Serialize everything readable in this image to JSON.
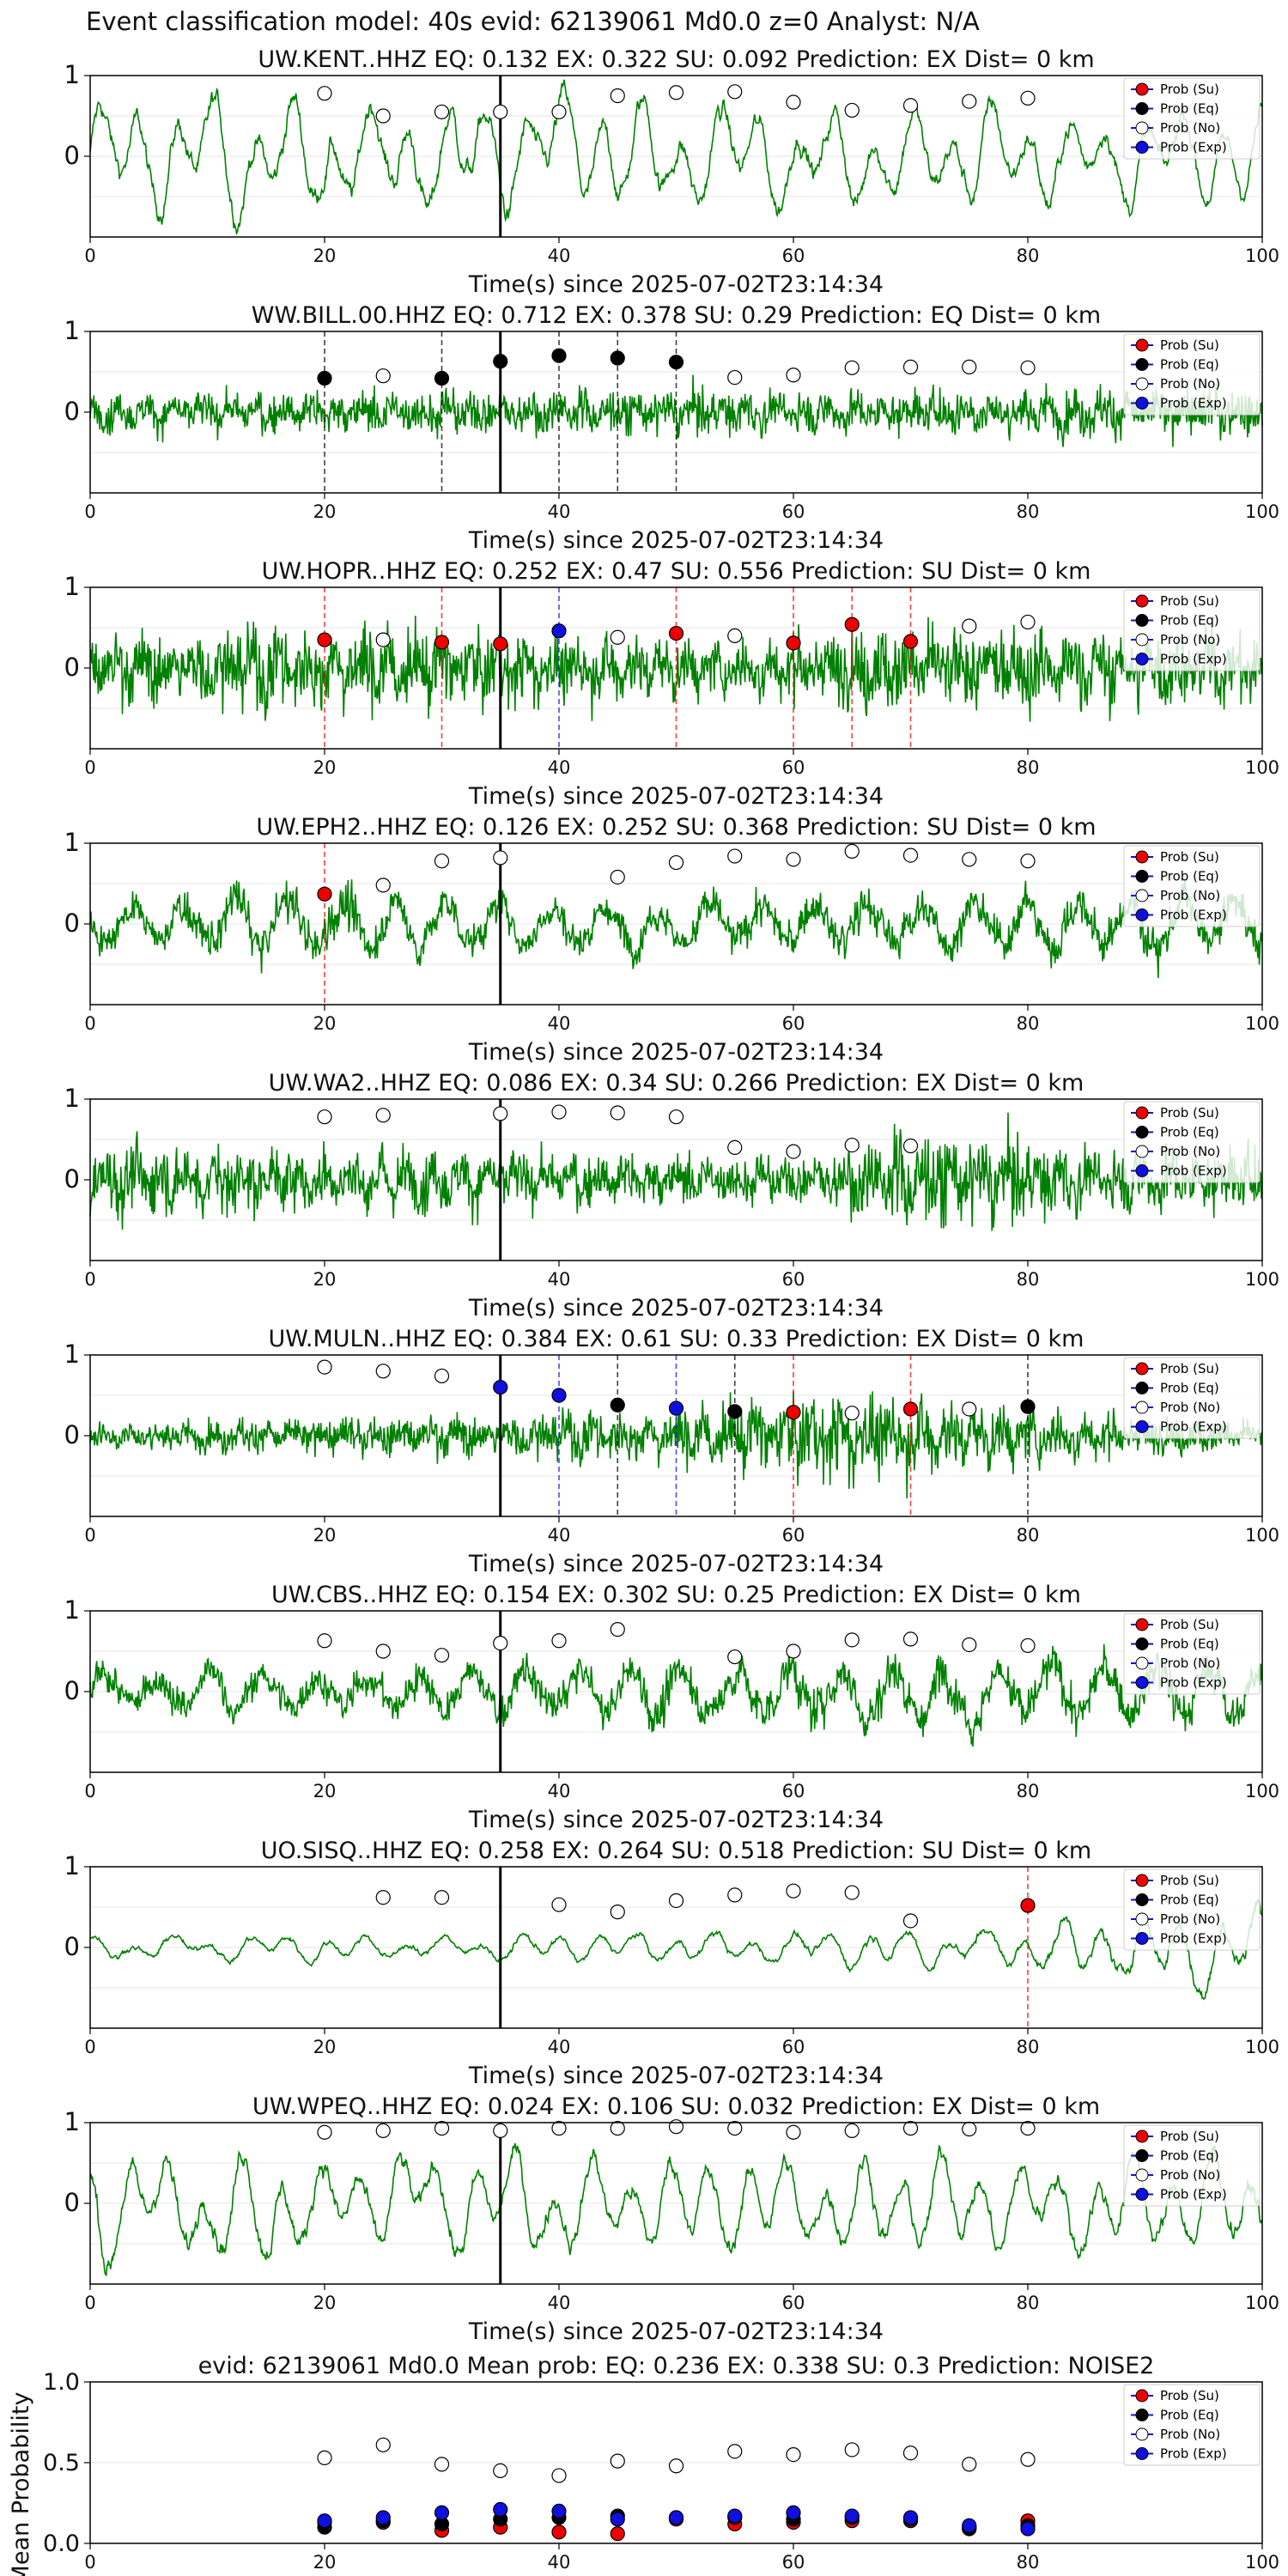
{
  "figure_title": "Event classification model: 40s evid: 62139061 Md0.0 z=0 Analyst: N/A",
  "legend_labels": [
    "Prob (Su)",
    "Prob (Eq)",
    "Prob (No)",
    "Prob (Exp)"
  ],
  "colors": {
    "su": "#ee0000",
    "eq": "#000000",
    "no": "#ffffff",
    "exp": "#1010dd",
    "trace": "#008000",
    "legend_bg": "#d5ead5"
  },
  "chart_data": [
    {
      "type": "line",
      "title": "UW.KENT..HHZ   EQ: 0.132  EX: 0.322  SU: 0.092   Prediction: EX    Dist= 0 km",
      "xlabel": "Time(s) since 2025-07-02T23:14:34",
      "xlim": [
        0,
        100
      ],
      "ylim": [
        -1,
        1
      ],
      "xticks": [
        "0",
        "20",
        "40",
        "60",
        "80",
        "100"
      ],
      "yticks": [
        "1",
        "0"
      ],
      "event_line_x": 35,
      "trace_style": "smooth",
      "trace_amp": [
        [
          0,
          0.75
        ],
        [
          30,
          0.8
        ],
        [
          60,
          0.7
        ],
        [
          100,
          0.65
        ]
      ],
      "markers": [
        {
          "x": 20,
          "y": 0.78,
          "cls": "no"
        },
        {
          "x": 25,
          "y": 0.5,
          "cls": "no"
        },
        {
          "x": 30,
          "y": 0.55,
          "cls": "no"
        },
        {
          "x": 35,
          "y": 0.55,
          "cls": "no"
        },
        {
          "x": 40,
          "y": 0.55,
          "cls": "no"
        },
        {
          "x": 45,
          "y": 0.75,
          "cls": "no"
        },
        {
          "x": 50,
          "y": 0.79,
          "cls": "no"
        },
        {
          "x": 55,
          "y": 0.8,
          "cls": "no"
        },
        {
          "x": 60,
          "y": 0.67,
          "cls": "no"
        },
        {
          "x": 65,
          "y": 0.57,
          "cls": "no"
        },
        {
          "x": 70,
          "y": 0.63,
          "cls": "no"
        },
        {
          "x": 75,
          "y": 0.68,
          "cls": "no"
        },
        {
          "x": 80,
          "y": 0.72,
          "cls": "no"
        }
      ]
    },
    {
      "type": "line",
      "title": "WW.BILL.00.HHZ   EQ: 0.712  EX: 0.378  SU: 0.29   Prediction: EQ    Dist= 0 km",
      "xlabel": "Time(s) since 2025-07-02T23:14:34",
      "xlim": [
        0,
        100
      ],
      "ylim": [
        -1,
        1
      ],
      "xticks": [
        "0",
        "20",
        "40",
        "60",
        "80",
        "100"
      ],
      "yticks": [
        "1",
        "0"
      ],
      "event_line_x": 35,
      "trace_style": "noisy",
      "trace_amp": [
        [
          0,
          0.35
        ],
        [
          35,
          0.45
        ],
        [
          60,
          0.4
        ],
        [
          100,
          0.45
        ]
      ],
      "markers": [
        {
          "x": 20,
          "y": 0.42,
          "cls": "eq"
        },
        {
          "x": 25,
          "y": 0.45,
          "cls": "no"
        },
        {
          "x": 30,
          "y": 0.42,
          "cls": "eq"
        },
        {
          "x": 35,
          "y": 0.63,
          "cls": "eq"
        },
        {
          "x": 40,
          "y": 0.7,
          "cls": "eq"
        },
        {
          "x": 45,
          "y": 0.67,
          "cls": "eq"
        },
        {
          "x": 50,
          "y": 0.62,
          "cls": "eq"
        },
        {
          "x": 55,
          "y": 0.43,
          "cls": "no"
        },
        {
          "x": 60,
          "y": 0.46,
          "cls": "no"
        },
        {
          "x": 65,
          "y": 0.55,
          "cls": "no"
        },
        {
          "x": 70,
          "y": 0.56,
          "cls": "no"
        },
        {
          "x": 75,
          "y": 0.56,
          "cls": "no"
        },
        {
          "x": 80,
          "y": 0.55,
          "cls": "no"
        }
      ]
    },
    {
      "type": "line",
      "title": "UW.HOPR..HHZ   EQ: 0.252  EX: 0.47  SU: 0.556   Prediction: SU    Dist= 0 km",
      "xlabel": "Time(s) since 2025-07-02T23:14:34",
      "xlim": [
        0,
        100
      ],
      "ylim": [
        -1,
        1
      ],
      "xticks": [
        "0",
        "20",
        "40",
        "60",
        "80",
        "100"
      ],
      "yticks": [
        "1",
        "0"
      ],
      "event_line_x": 35,
      "trace_style": "noisy",
      "trace_amp": [
        [
          0,
          0.6
        ],
        [
          20,
          0.85
        ],
        [
          35,
          0.7
        ],
        [
          55,
          0.5
        ],
        [
          65,
          0.8
        ],
        [
          100,
          0.7
        ]
      ],
      "markers": [
        {
          "x": 20,
          "y": 0.35,
          "cls": "su"
        },
        {
          "x": 25,
          "y": 0.35,
          "cls": "no"
        },
        {
          "x": 30,
          "y": 0.32,
          "cls": "su"
        },
        {
          "x": 35,
          "y": 0.3,
          "cls": "su"
        },
        {
          "x": 40,
          "y": 0.46,
          "cls": "exp"
        },
        {
          "x": 45,
          "y": 0.38,
          "cls": "no"
        },
        {
          "x": 50,
          "y": 0.43,
          "cls": "su"
        },
        {
          "x": 55,
          "y": 0.4,
          "cls": "no"
        },
        {
          "x": 60,
          "y": 0.31,
          "cls": "su"
        },
        {
          "x": 65,
          "y": 0.54,
          "cls": "su"
        },
        {
          "x": 70,
          "y": 0.33,
          "cls": "su"
        },
        {
          "x": 75,
          "y": 0.52,
          "cls": "no"
        },
        {
          "x": 80,
          "y": 0.57,
          "cls": "no"
        }
      ]
    },
    {
      "type": "line",
      "title": "UW.EPH2..HHZ   EQ: 0.126  EX: 0.252  SU: 0.368   Prediction: SU    Dist= 0 km",
      "xlabel": "Time(s) since 2025-07-02T23:14:34",
      "xlim": [
        0,
        100
      ],
      "ylim": [
        -1,
        1
      ],
      "xticks": [
        "0",
        "20",
        "40",
        "60",
        "80",
        "100"
      ],
      "yticks": [
        "1",
        "0"
      ],
      "event_line_x": 35,
      "trace_style": "mixed",
      "trace_amp": [
        [
          0,
          0.45
        ],
        [
          18,
          0.8
        ],
        [
          35,
          0.5
        ],
        [
          55,
          0.6
        ],
        [
          100,
          0.65
        ]
      ],
      "markers": [
        {
          "x": 20,
          "y": 0.37,
          "cls": "su"
        },
        {
          "x": 25,
          "y": 0.48,
          "cls": "no"
        },
        {
          "x": 30,
          "y": 0.78,
          "cls": "no"
        },
        {
          "x": 35,
          "y": 0.82,
          "cls": "no"
        },
        {
          "x": 45,
          "y": 0.58,
          "cls": "no"
        },
        {
          "x": 50,
          "y": 0.76,
          "cls": "no"
        },
        {
          "x": 55,
          "y": 0.84,
          "cls": "no"
        },
        {
          "x": 60,
          "y": 0.8,
          "cls": "no"
        },
        {
          "x": 65,
          "y": 0.9,
          "cls": "no"
        },
        {
          "x": 70,
          "y": 0.85,
          "cls": "no"
        },
        {
          "x": 75,
          "y": 0.8,
          "cls": "no"
        },
        {
          "x": 80,
          "y": 0.78,
          "cls": "no"
        }
      ]
    },
    {
      "type": "line",
      "title": "UW.WA2..HHZ   EQ: 0.086  EX: 0.34  SU: 0.266   Prediction: EX    Dist= 0 km",
      "xlabel": "Time(s) since 2025-07-02T23:14:34",
      "xlim": [
        0,
        100
      ],
      "ylim": [
        -1,
        1
      ],
      "xticks": [
        "0",
        "20",
        "40",
        "60",
        "80",
        "100"
      ],
      "yticks": [
        "1",
        "0"
      ],
      "event_line_x": 35,
      "trace_style": "noisy",
      "trace_amp": [
        [
          0,
          0.7
        ],
        [
          35,
          0.55
        ],
        [
          60,
          0.45
        ],
        [
          70,
          0.95
        ],
        [
          85,
          0.6
        ],
        [
          100,
          0.6
        ]
      ],
      "markers": [
        {
          "x": 20,
          "y": 0.78,
          "cls": "no"
        },
        {
          "x": 25,
          "y": 0.8,
          "cls": "no"
        },
        {
          "x": 35,
          "y": 0.82,
          "cls": "no"
        },
        {
          "x": 40,
          "y": 0.84,
          "cls": "no"
        },
        {
          "x": 45,
          "y": 0.83,
          "cls": "no"
        },
        {
          "x": 50,
          "y": 0.78,
          "cls": "no"
        },
        {
          "x": 55,
          "y": 0.4,
          "cls": "no"
        },
        {
          "x": 60,
          "y": 0.35,
          "cls": "no"
        },
        {
          "x": 65,
          "y": 0.43,
          "cls": "no"
        },
        {
          "x": 70,
          "y": 0.42,
          "cls": "no"
        }
      ]
    },
    {
      "type": "line",
      "title": "UW.MULN..HHZ   EQ: 0.384  EX: 0.61  SU: 0.33   Prediction: EX    Dist= 0 km",
      "xlabel": "Time(s) since 2025-07-02T23:14:34",
      "xlim": [
        0,
        100
      ],
      "ylim": [
        -1,
        1
      ],
      "xticks": [
        "0",
        "20",
        "40",
        "60",
        "80",
        "100"
      ],
      "yticks": [
        "1",
        "0"
      ],
      "event_line_x": 35,
      "trace_style": "noisy",
      "trace_amp": [
        [
          0,
          0.25
        ],
        [
          35,
          0.4
        ],
        [
          50,
          0.55
        ],
        [
          65,
          0.85
        ],
        [
          75,
          0.6
        ],
        [
          100,
          0.25
        ]
      ],
      "markers": [
        {
          "x": 20,
          "y": 0.85,
          "cls": "no"
        },
        {
          "x": 25,
          "y": 0.8,
          "cls": "no"
        },
        {
          "x": 30,
          "y": 0.74,
          "cls": "no"
        },
        {
          "x": 35,
          "y": 0.6,
          "cls": "exp"
        },
        {
          "x": 40,
          "y": 0.5,
          "cls": "exp"
        },
        {
          "x": 45,
          "y": 0.38,
          "cls": "eq"
        },
        {
          "x": 50,
          "y": 0.34,
          "cls": "exp"
        },
        {
          "x": 55,
          "y": 0.3,
          "cls": "eq"
        },
        {
          "x": 60,
          "y": 0.29,
          "cls": "su"
        },
        {
          "x": 65,
          "y": 0.28,
          "cls": "no"
        },
        {
          "x": 70,
          "y": 0.33,
          "cls": "su"
        },
        {
          "x": 75,
          "y": 0.33,
          "cls": "no"
        },
        {
          "x": 80,
          "y": 0.36,
          "cls": "eq"
        }
      ]
    },
    {
      "type": "line",
      "title": "UW.CBS..HHZ   EQ: 0.154  EX: 0.302  SU: 0.25   Prediction: EX    Dist= 0 km",
      "xlabel": "Time(s) since 2025-07-02T23:14:34",
      "xlim": [
        0,
        100
      ],
      "ylim": [
        -1,
        1
      ],
      "xticks": [
        "0",
        "20",
        "40",
        "60",
        "80",
        "100"
      ],
      "yticks": [
        "1",
        "0"
      ],
      "event_line_x": 35,
      "trace_style": "mixed",
      "trace_amp": [
        [
          0,
          0.5
        ],
        [
          35,
          0.55
        ],
        [
          65,
          0.75
        ],
        [
          100,
          0.6
        ]
      ],
      "markers": [
        {
          "x": 20,
          "y": 0.63,
          "cls": "no"
        },
        {
          "x": 25,
          "y": 0.5,
          "cls": "no"
        },
        {
          "x": 30,
          "y": 0.45,
          "cls": "no"
        },
        {
          "x": 35,
          "y": 0.6,
          "cls": "no"
        },
        {
          "x": 40,
          "y": 0.63,
          "cls": "no"
        },
        {
          "x": 45,
          "y": 0.77,
          "cls": "no"
        },
        {
          "x": 55,
          "y": 0.43,
          "cls": "no"
        },
        {
          "x": 60,
          "y": 0.5,
          "cls": "no"
        },
        {
          "x": 65,
          "y": 0.64,
          "cls": "no"
        },
        {
          "x": 70,
          "y": 0.65,
          "cls": "no"
        },
        {
          "x": 75,
          "y": 0.58,
          "cls": "no"
        },
        {
          "x": 80,
          "y": 0.57,
          "cls": "no"
        }
      ]
    },
    {
      "type": "line",
      "title": "UO.SISQ..HHZ   EQ: 0.258  EX: 0.264  SU: 0.518   Prediction: SU    Dist= 0 km",
      "xlabel": "Time(s) since 2025-07-02T23:14:34",
      "xlim": [
        0,
        100
      ],
      "ylim": [
        -1,
        1
      ],
      "xticks": [
        "0",
        "20",
        "40",
        "60",
        "80",
        "100"
      ],
      "yticks": [
        "1",
        "0"
      ],
      "event_line_x": 35,
      "trace_style": "smooth",
      "trace_amp": [
        [
          0,
          0.18
        ],
        [
          50,
          0.2
        ],
        [
          80,
          0.3
        ],
        [
          90,
          0.55
        ],
        [
          100,
          0.7
        ]
      ],
      "markers": [
        {
          "x": 25,
          "y": 0.62,
          "cls": "no"
        },
        {
          "x": 30,
          "y": 0.62,
          "cls": "no"
        },
        {
          "x": 40,
          "y": 0.53,
          "cls": "no"
        },
        {
          "x": 45,
          "y": 0.44,
          "cls": "no"
        },
        {
          "x": 50,
          "y": 0.58,
          "cls": "no"
        },
        {
          "x": 55,
          "y": 0.65,
          "cls": "no"
        },
        {
          "x": 60,
          "y": 0.7,
          "cls": "no"
        },
        {
          "x": 65,
          "y": 0.68,
          "cls": "no"
        },
        {
          "x": 70,
          "y": 0.33,
          "cls": "no"
        },
        {
          "x": 80,
          "y": 0.52,
          "cls": "su"
        }
      ]
    },
    {
      "type": "line",
      "title": "UW.WPEQ..HHZ   EQ: 0.024  EX: 0.106  SU: 0.032   Prediction: EX    Dist= 0 km",
      "xlabel": "Time(s) since 2025-07-02T23:14:34",
      "xlim": [
        0,
        100
      ],
      "ylim": [
        -1,
        1
      ],
      "xticks": [
        "0",
        "20",
        "40",
        "60",
        "80",
        "100"
      ],
      "yticks": [
        "1",
        "0"
      ],
      "event_line_x": 35,
      "trace_style": "smooth",
      "trace_amp": [
        [
          0,
          0.8
        ],
        [
          40,
          0.65
        ],
        [
          100,
          0.65
        ]
      ],
      "markers": [
        {
          "x": 20,
          "y": 0.88,
          "cls": "no"
        },
        {
          "x": 25,
          "y": 0.9,
          "cls": "no"
        },
        {
          "x": 30,
          "y": 0.93,
          "cls": "no"
        },
        {
          "x": 35,
          "y": 0.9,
          "cls": "no"
        },
        {
          "x": 40,
          "y": 0.93,
          "cls": "no"
        },
        {
          "x": 45,
          "y": 0.93,
          "cls": "no"
        },
        {
          "x": 50,
          "y": 0.95,
          "cls": "no"
        },
        {
          "x": 55,
          "y": 0.93,
          "cls": "no"
        },
        {
          "x": 60,
          "y": 0.88,
          "cls": "no"
        },
        {
          "x": 65,
          "y": 0.9,
          "cls": "no"
        },
        {
          "x": 70,
          "y": 0.93,
          "cls": "no"
        },
        {
          "x": 75,
          "y": 0.92,
          "cls": "no"
        },
        {
          "x": 80,
          "y": 0.93,
          "cls": "no"
        }
      ]
    },
    {
      "type": "scatter",
      "title": "evid: 62139061  Md0.0   Mean prob:   EQ: 0.236  EX: 0.338  SU: 0.3   Prediction: NOISE2",
      "ylabel": "Mean Probability",
      "xlim": [
        0,
        100
      ],
      "ylim": [
        0,
        1
      ],
      "xticks": [
        "0",
        "20",
        "40",
        "60",
        "80",
        "100"
      ],
      "yticks": [
        "0.0",
        "0.5",
        "1.0"
      ],
      "x": [
        20,
        25,
        30,
        35,
        40,
        45,
        50,
        55,
        60,
        65,
        70,
        75,
        80
      ],
      "series": [
        {
          "name": "Prob (Su)",
          "cls": "su",
          "values": [
            0.13,
            0.13,
            0.08,
            0.1,
            0.07,
            0.06,
            0.15,
            0.12,
            0.13,
            0.14,
            0.14,
            0.1,
            0.14
          ]
        },
        {
          "name": "Prob (Eq)",
          "cls": "eq",
          "values": [
            0.1,
            0.14,
            0.12,
            0.15,
            0.16,
            0.17,
            0.16,
            0.16,
            0.15,
            0.16,
            0.15,
            0.09,
            0.11
          ]
        },
        {
          "name": "Prob (No)",
          "cls": "no",
          "values": [
            0.53,
            0.61,
            0.49,
            0.45,
            0.42,
            0.51,
            0.48,
            0.57,
            0.55,
            0.58,
            0.56,
            0.49,
            0.52
          ]
        },
        {
          "name": "Prob (Exp)",
          "cls": "exp",
          "values": [
            0.14,
            0.16,
            0.19,
            0.21,
            0.2,
            0.15,
            0.16,
            0.17,
            0.19,
            0.17,
            0.16,
            0.11,
            0.09
          ]
        }
      ]
    }
  ]
}
